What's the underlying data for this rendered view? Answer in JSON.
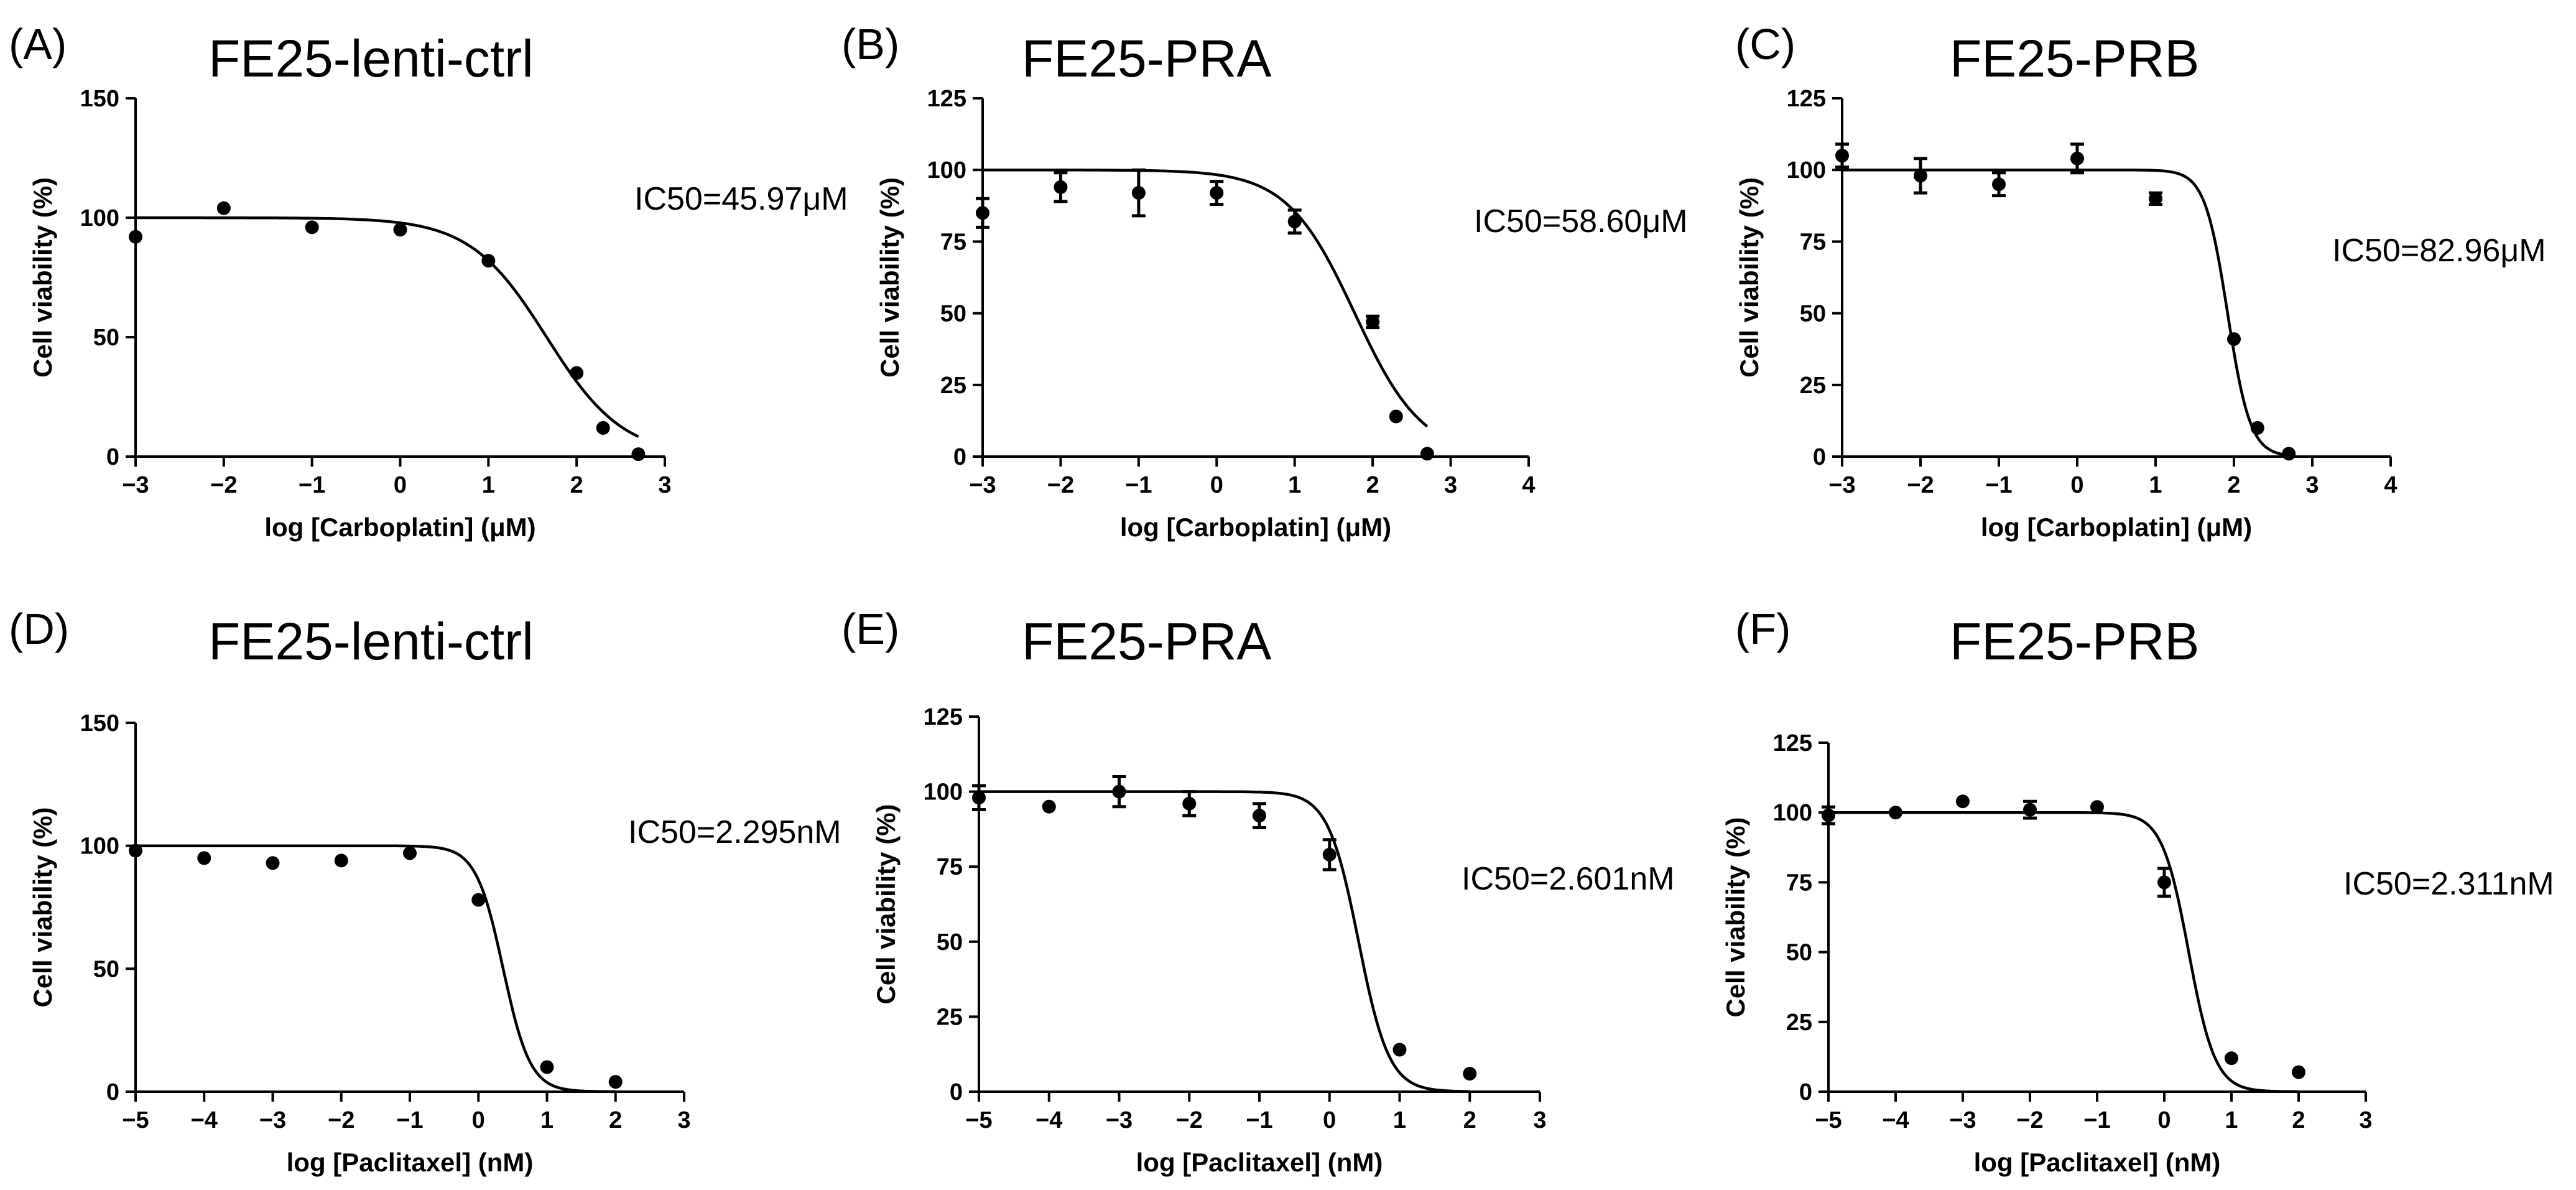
{
  "chart_data": [
    {
      "id": "A",
      "panel_letter": "(A)",
      "type": "scatter",
      "title": "FE25-lenti-ctrl",
      "xlabel": "log [Carboplatin] (μM)",
      "ylabel": "Cell viability (%)",
      "xlim": [
        -3,
        3
      ],
      "ylim": [
        0,
        150
      ],
      "xticks": [
        -3,
        -2,
        -1,
        0,
        1,
        2,
        3
      ],
      "yticks": [
        0,
        50,
        100,
        150
      ],
      "annotation": "IC50=45.97μM",
      "fit": {
        "top": 100,
        "bottom": 0,
        "log_ic50": 1.66,
        "hill": -1.0,
        "x_range": [
          -3,
          2.7
        ]
      },
      "series": [
        {
          "name": "FE25-lenti-ctrl",
          "x": [
            -3,
            -2,
            -1,
            0,
            1,
            2,
            2.3,
            2.7
          ],
          "values": [
            92,
            104,
            96,
            95,
            82,
            35,
            12,
            1
          ],
          "error": [
            0,
            0,
            0,
            0,
            0,
            0,
            0,
            0
          ]
        }
      ]
    },
    {
      "id": "B",
      "panel_letter": "(B)",
      "type": "scatter",
      "title": "FE25-PRA",
      "xlabel": "log [Carboplatin] (μM)",
      "ylabel": "Cell viability (%)",
      "xlim": [
        -3,
        4
      ],
      "ylim": [
        0,
        125
      ],
      "xticks": [
        -3,
        -2,
        -1,
        0,
        1,
        2,
        3,
        4
      ],
      "yticks": [
        0,
        25,
        50,
        75,
        100,
        125
      ],
      "annotation": "IC50=58.60μM",
      "fit": {
        "top": 100,
        "bottom": 0,
        "log_ic50": 1.77,
        "hill": -1.0,
        "x_range": [
          -3,
          2.7
        ]
      },
      "series": [
        {
          "name": "FE25-PRA",
          "x": [
            -3,
            -2,
            -1,
            0,
            1,
            2,
            2.3,
            2.7
          ],
          "values": [
            85,
            94,
            92,
            92,
            82,
            47,
            14,
            1
          ],
          "error": [
            5,
            5,
            8,
            4,
            4,
            2,
            0,
            0
          ]
        }
      ]
    },
    {
      "id": "C",
      "panel_letter": "(C)",
      "type": "scatter",
      "title": "FE25-PRB",
      "xlabel": "log [Carboplatin] (μM)",
      "ylabel": "Cell viability (%)",
      "xlim": [
        -3,
        4
      ],
      "ylim": [
        0,
        125
      ],
      "xticks": [
        -3,
        -2,
        -1,
        0,
        1,
        2,
        3,
        4
      ],
      "yticks": [
        0,
        25,
        50,
        75,
        100,
        125
      ],
      "annotation": "IC50=82.96μM",
      "fit": {
        "top": 100,
        "bottom": 0,
        "log_ic50": 1.919,
        "hill": -3.0,
        "x_range": [
          -3,
          2.7
        ]
      },
      "series": [
        {
          "name": "FE25-PRB",
          "x": [
            -3,
            -2,
            -1,
            0,
            1,
            2,
            2.3,
            2.7
          ],
          "values": [
            105,
            98,
            95,
            104,
            90,
            41,
            10,
            1
          ],
          "error": [
            4,
            6,
            4,
            5,
            2,
            0,
            0,
            0
          ]
        }
      ]
    },
    {
      "id": "D",
      "panel_letter": "(D)",
      "type": "scatter",
      "title": "FE25-lenti-ctrl",
      "xlabel": "log [Paclitaxel] (nM)",
      "ylabel": "Cell viability (%)",
      "xlim": [
        -5,
        3
      ],
      "ylim": [
        0,
        150
      ],
      "xticks": [
        -5,
        -4,
        -3,
        -2,
        -1,
        0,
        1,
        2,
        3
      ],
      "yticks": [
        0,
        50,
        100,
        150
      ],
      "annotation": "IC50=2.295nM",
      "fit": {
        "top": 100,
        "bottom": 0,
        "log_ic50": 0.361,
        "hill": -2.2,
        "x_range": [
          -5,
          2
        ]
      },
      "series": [
        {
          "name": "FE25-lenti-ctrl",
          "x": [
            -5,
            -4,
            -3,
            -2,
            -1,
            0,
            1,
            2
          ],
          "values": [
            98,
            95,
            93,
            94,
            97,
            78,
            10,
            4
          ],
          "error": [
            0,
            0,
            0,
            0,
            0,
            0,
            0,
            0
          ]
        }
      ]
    },
    {
      "id": "E",
      "panel_letter": "(E)",
      "type": "scatter",
      "title": "FE25-PRA",
      "xlabel": "log [Paclitaxel] (nM)",
      "ylabel": "Cell viability (%)",
      "xlim": [
        -5,
        3
      ],
      "ylim": [
        0,
        125
      ],
      "xticks": [
        -5,
        -4,
        -3,
        -2,
        -1,
        0,
        1,
        2,
        3
      ],
      "yticks": [
        0,
        25,
        50,
        75,
        100,
        125
      ],
      "annotation": "IC50=2.601nM",
      "fit": {
        "top": 100,
        "bottom": 0,
        "log_ic50": 0.415,
        "hill": -2.0,
        "x_range": [
          -5,
          2
        ]
      },
      "series": [
        {
          "name": "FE25-PRA",
          "x": [
            -5,
            -4,
            -3,
            -2,
            -1,
            0,
            1,
            2
          ],
          "values": [
            98,
            95,
            100,
            96,
            92,
            79,
            14,
            6
          ],
          "error": [
            4,
            0,
            5,
            4,
            4,
            5,
            0,
            0
          ]
        }
      ]
    },
    {
      "id": "F",
      "panel_letter": "(F)",
      "type": "scatter",
      "title": "FE25-PRB",
      "xlabel": "log [Paclitaxel] (nM)",
      "ylabel": "Cell viability (%)",
      "xlim": [
        -5,
        3
      ],
      "ylim": [
        0,
        125
      ],
      "xticks": [
        -5,
        -4,
        -3,
        -2,
        -1,
        0,
        1,
        2,
        3
      ],
      "yticks": [
        0,
        25,
        50,
        75,
        100,
        125
      ],
      "annotation": "IC50=2.311nM",
      "fit": {
        "top": 100,
        "bottom": 0,
        "log_ic50": 0.364,
        "hill": -2.2,
        "x_range": [
          -5,
          2
        ]
      },
      "series": [
        {
          "name": "FE25-PRB",
          "x": [
            -5,
            -4,
            -3,
            -2,
            -1,
            0,
            1,
            2
          ],
          "values": [
            99,
            100,
            104,
            101,
            102,
            75,
            12,
            7
          ],
          "error": [
            3,
            0,
            0,
            3,
            0,
            5,
            0,
            0
          ]
        }
      ]
    }
  ]
}
